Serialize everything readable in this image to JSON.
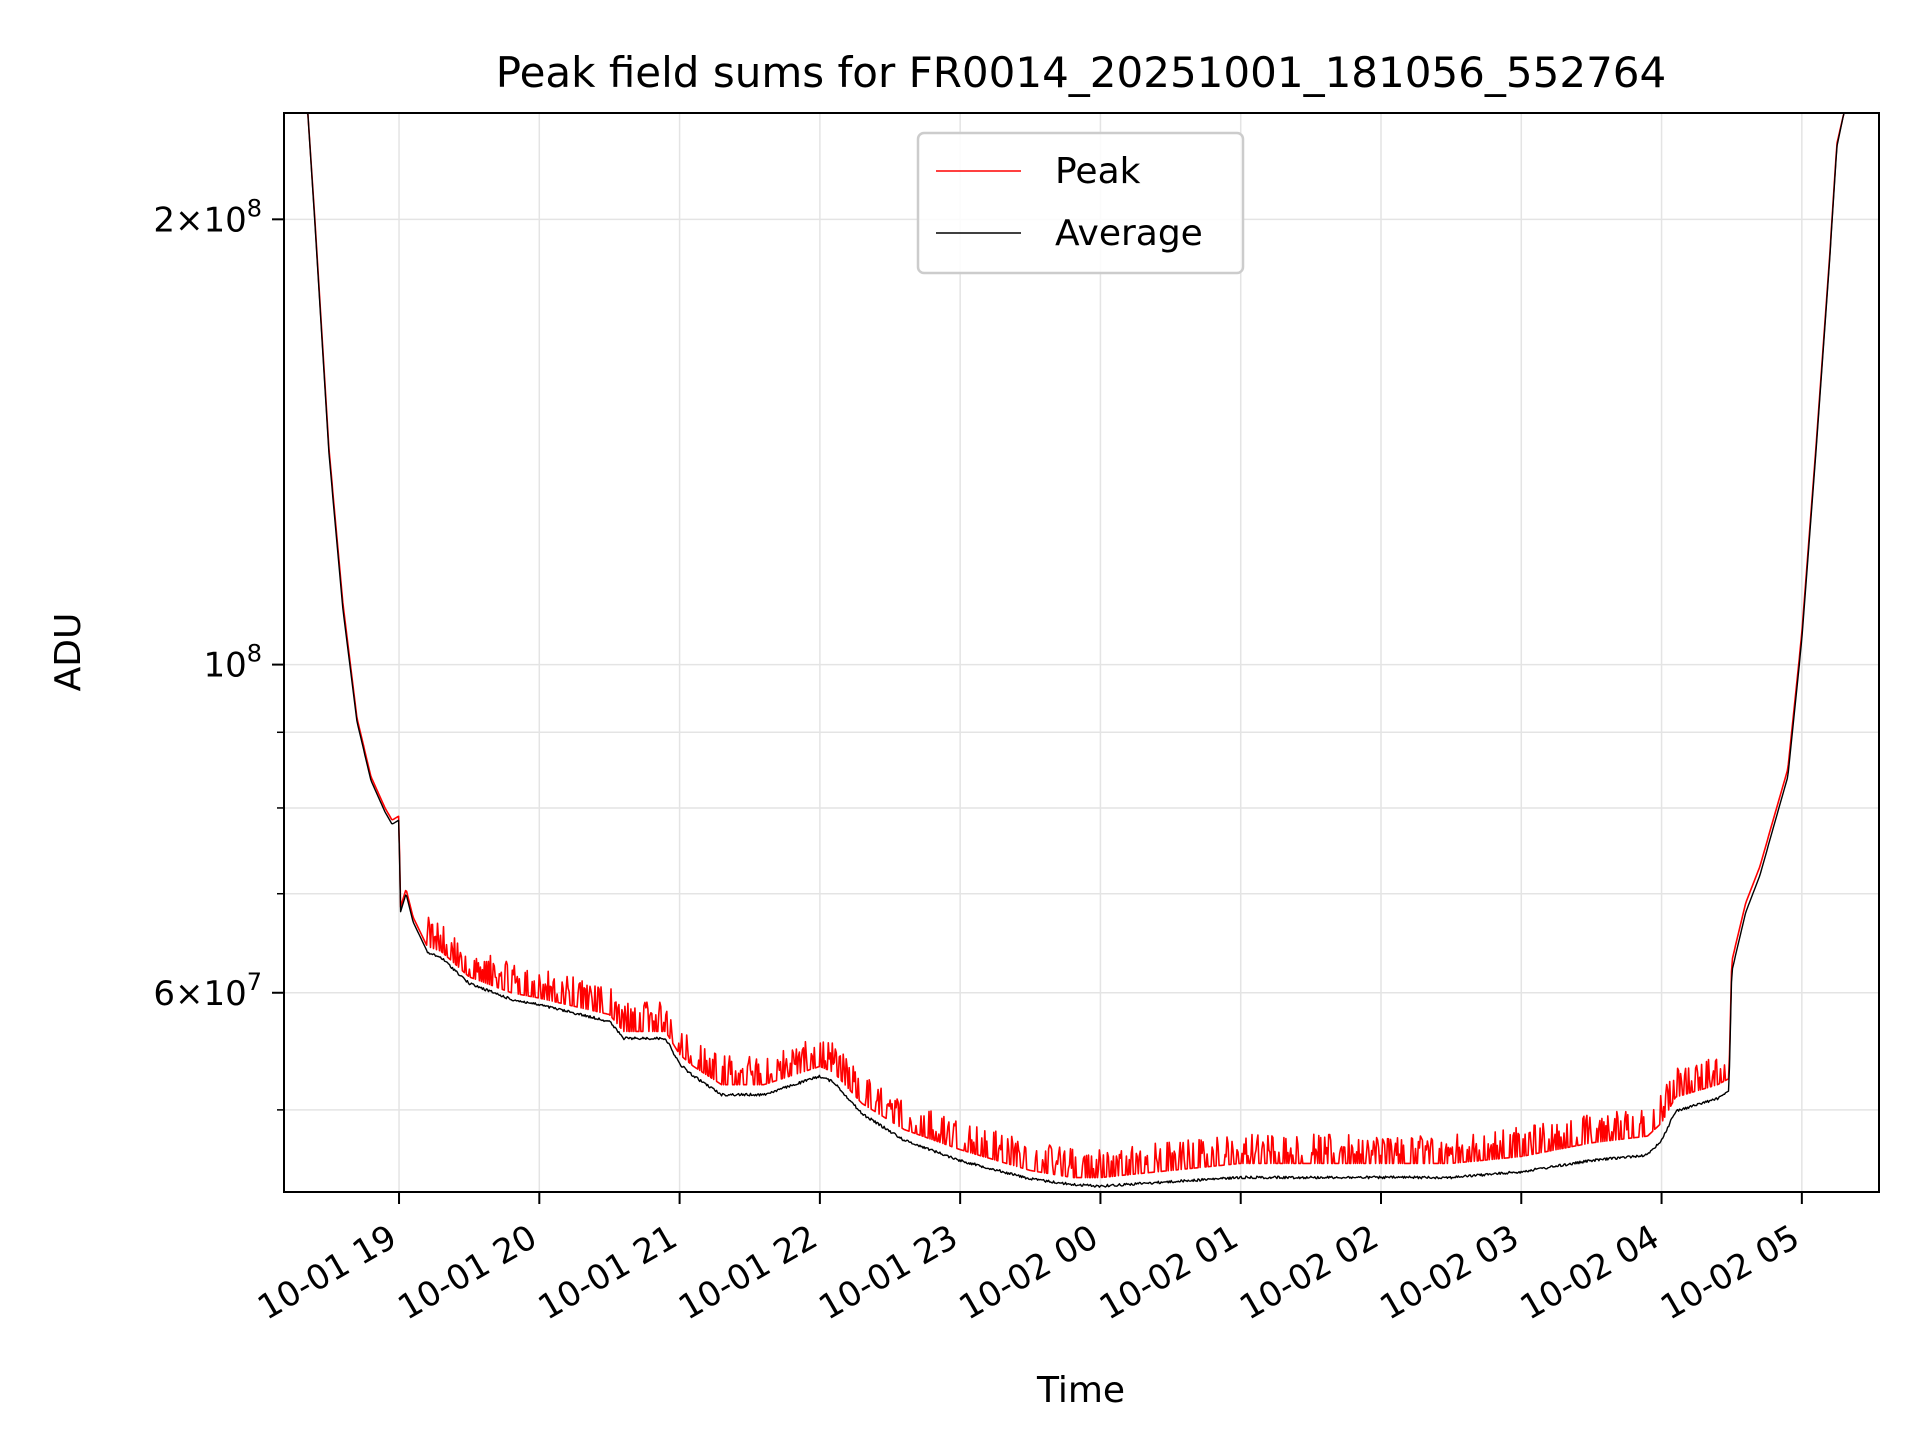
{
  "chart_data": {
    "type": "line",
    "title": "Peak field sums for FR0014_20251001_181056_552764",
    "xlabel": "Time",
    "ylabel": "ADU",
    "yscale": "log",
    "grid": true,
    "legend_position": "top-center",
    "xlim_hours": [
      18.18,
      29.55
    ],
    "ylim": [
      44000000,
      236000000
    ],
    "x_ticks": [
      {
        "label": "10-01 19",
        "hour": 19
      },
      {
        "label": "10-01 20",
        "hour": 20
      },
      {
        "label": "10-01 21",
        "hour": 21
      },
      {
        "label": "10-01 22",
        "hour": 22
      },
      {
        "label": "10-01 23",
        "hour": 23
      },
      {
        "label": "10-02 00",
        "hour": 24
      },
      {
        "label": "10-02 01",
        "hour": 25
      },
      {
        "label": "10-02 02",
        "hour": 26
      },
      {
        "label": "10-02 03",
        "hour": 27
      },
      {
        "label": "10-02 04",
        "hour": 28
      },
      {
        "label": "10-02 05",
        "hour": 29
      }
    ],
    "y_major_ticks": [
      {
        "value": 100000000,
        "base": "10",
        "exp": "8"
      },
      {
        "value": 200000000,
        "mant": "2",
        "base": "10",
        "exp": "8"
      },
      {
        "value": 60000000,
        "mant": "6",
        "base": "10",
        "exp": "7"
      }
    ],
    "y_minor_ticks": [
      50000000,
      70000000,
      80000000,
      90000000,
      300000000
    ],
    "series": [
      {
        "name": "Peak",
        "color": "#ff0000",
        "x": [
          18.18,
          18.35,
          18.4,
          18.5,
          18.6,
          18.7,
          18.8,
          18.9,
          18.95,
          19.0,
          19.01,
          19.05,
          19.1,
          19.2,
          19.3,
          19.5,
          19.8,
          20.0,
          20.5,
          20.6,
          20.9,
          21.0,
          21.1,
          21.3,
          21.6,
          22.0,
          22.1,
          22.3,
          22.6,
          23.0,
          23.5,
          23.8,
          24.0,
          24.5,
          25.0,
          25.5,
          26.0,
          26.5,
          27.0,
          27.5,
          27.9,
          28.0,
          28.1,
          28.4,
          28.48,
          28.5,
          28.6,
          28.7,
          28.9,
          29.0,
          29.1,
          29.2,
          29.25,
          29.3,
          29.55
        ],
        "values": [
          236000000,
          236000000,
          200000000,
          140000000,
          110000000,
          92000000,
          84000000,
          80000000,
          78500000,
          79000000,
          68500000,
          70500000,
          67500000,
          64500000,
          64000000,
          61500000,
          60000000,
          59500000,
          58000000,
          56500000,
          56500000,
          54500000,
          53500000,
          52000000,
          52000000,
          53500000,
          53000000,
          50500000,
          48500000,
          47000000,
          45500000,
          45000000,
          45000000,
          45500000,
          46000000,
          46000000,
          46000000,
          46000000,
          46500000,
          47500000,
          48000000,
          49000000,
          51000000,
          52000000,
          52500000,
          63000000,
          69000000,
          73000000,
          85000000,
          105000000,
          140000000,
          190000000,
          225000000,
          236000000,
          236000000
        ]
      },
      {
        "name": "Average",
        "color": "#000000",
        "x": [
          18.18,
          18.35,
          18.4,
          18.5,
          18.6,
          18.7,
          18.8,
          18.9,
          18.95,
          19.0,
          19.01,
          19.05,
          19.1,
          19.2,
          19.3,
          19.5,
          19.8,
          20.0,
          20.5,
          20.6,
          20.9,
          21.0,
          21.1,
          21.3,
          21.6,
          22.0,
          22.1,
          22.3,
          22.6,
          23.0,
          23.5,
          23.8,
          24.0,
          24.5,
          25.0,
          25.5,
          26.0,
          26.5,
          27.0,
          27.5,
          27.9,
          28.0,
          28.1,
          28.4,
          28.48,
          28.5,
          28.6,
          28.7,
          28.9,
          29.0,
          29.1,
          29.2,
          29.25,
          29.3,
          29.55
        ],
        "values": [
          236000000,
          236000000,
          199000000,
          139000000,
          109000000,
          91500000,
          83500000,
          79500000,
          78000000,
          78500000,
          68000000,
          70000000,
          67000000,
          64000000,
          63500000,
          61000000,
          59500000,
          59000000,
          57500000,
          56000000,
          56000000,
          53800000,
          52800000,
          51300000,
          51300000,
          52800000,
          52300000,
          49800000,
          47800000,
          46300000,
          45000000,
          44600000,
          44500000,
          44800000,
          45100000,
          45100000,
          45100000,
          45100000,
          45500000,
          46300000,
          46700000,
          47800000,
          50000000,
          51000000,
          51500000,
          62000000,
          68000000,
          72000000,
          84000000,
          104000000,
          139000000,
          189000000,
          224000000,
          236000000,
          236000000
        ]
      }
    ]
  }
}
